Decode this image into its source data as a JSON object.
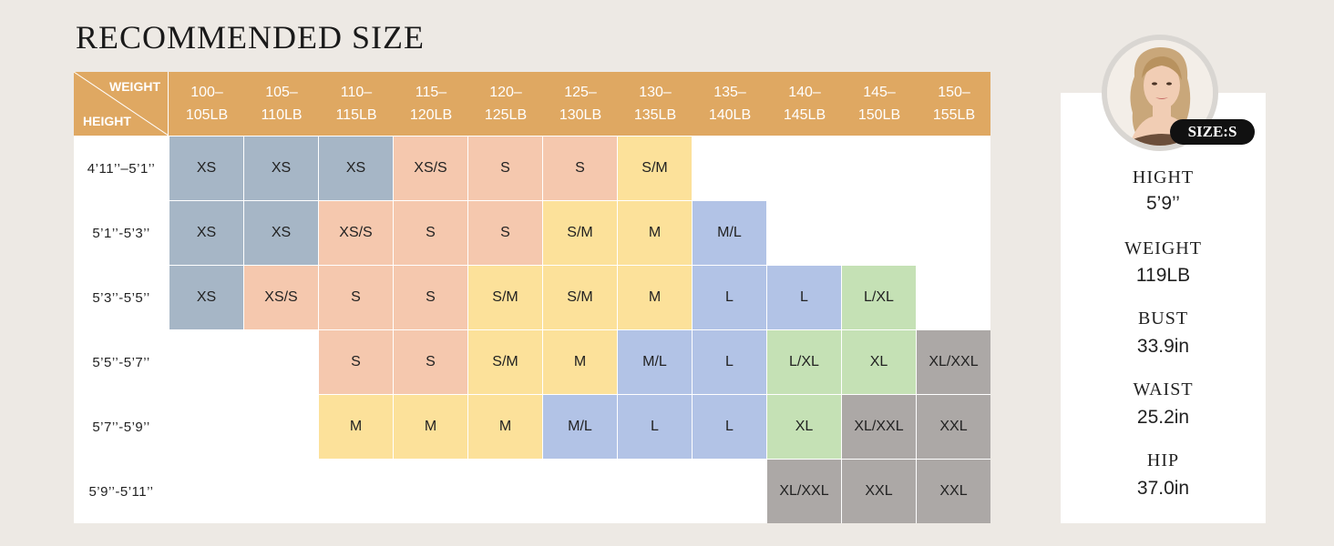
{
  "title": "RECOMMENDED SIZE",
  "corner": {
    "weight_label": "WEIGHT",
    "height_label": "HEIGHT"
  },
  "weights": [
    [
      "100–",
      "105LB"
    ],
    [
      "105–",
      "110LB"
    ],
    [
      "110–",
      "115LB"
    ],
    [
      "115–",
      "120LB"
    ],
    [
      "120–",
      "125LB"
    ],
    [
      "125–",
      "130LB"
    ],
    [
      "130–",
      "135LB"
    ],
    [
      "135–",
      "140LB"
    ],
    [
      "140–",
      "145LB"
    ],
    [
      "145–",
      "150LB"
    ],
    [
      "150–",
      "155LB"
    ]
  ],
  "heights": [
    "4’11’’–5’1’’",
    "5’1’’-5’3’’",
    "5’3’’-5’5’’",
    "5’5’’-5’7’’",
    "5’7’’-5’9’’",
    "5’9’’-5’11’’"
  ],
  "sizes": [
    [
      "XS",
      "XS",
      "XS",
      "XS/S",
      "S",
      "S",
      "S/M",
      "",
      "",
      "",
      ""
    ],
    [
      "XS",
      "XS",
      "XS/S",
      "S",
      "S",
      "S/M",
      "M",
      "M/L",
      "",
      "",
      ""
    ],
    [
      "XS",
      "XS/S",
      "S",
      "S",
      "S/M",
      "S/M",
      "M",
      "L",
      "L",
      "L/XL",
      ""
    ],
    [
      "",
      "",
      "S",
      "S",
      "S/M",
      "M",
      "M/L",
      "L",
      "L/XL",
      "XL",
      "XL/XXL"
    ],
    [
      "",
      "",
      "M",
      "M",
      "M",
      "M/L",
      "L",
      "L",
      "XL",
      "XL/XXL",
      "XXL"
    ],
    [
      "",
      "",
      "",
      "",
      "",
      "",
      "",
      "",
      "XL/XXL",
      "XXL",
      "XXL"
    ]
  ],
  "size_colors": {
    "XS": "#a6b6c6",
    "XS/S": "#f5c8ae",
    "S": "#f5c8ae",
    "S/M": "#fce19a",
    "M": "#fce19a",
    "M/L": "#b2c3e6",
    "L": "#b2c3e6",
    "L/XL": "#c5e1b5",
    "XL": "#c5e1b5",
    "XL/XXL": "#aca8a6",
    "XXL": "#aca8a6"
  },
  "header_color": "#dfa862",
  "model": {
    "badge": "SIZE:S",
    "stats": [
      {
        "label": "HIGHT",
        "value": "5’9’’"
      },
      {
        "label": "WEIGHT",
        "value": "119LB"
      },
      {
        "label": "BUST",
        "value": "33.9in"
      },
      {
        "label": "WAIST",
        "value": "25.2in"
      },
      {
        "label": "HIP",
        "value": "37.0in"
      }
    ]
  }
}
